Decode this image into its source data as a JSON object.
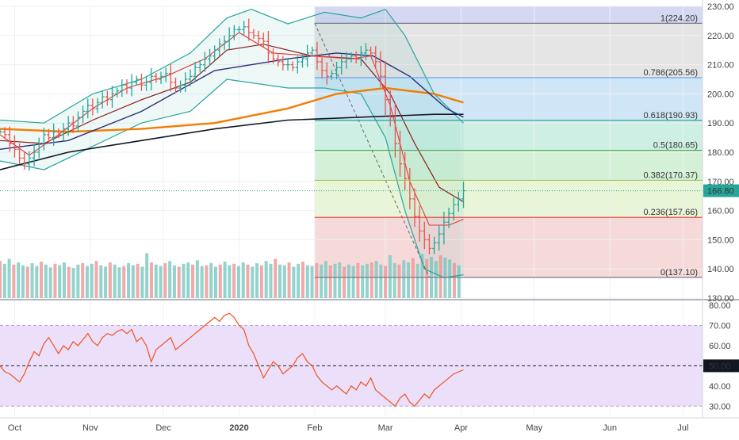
{
  "chart_data": {
    "type": "candlestick-technical",
    "symbol_price": {
      "value": "166.80",
      "color": "#26a69a"
    },
    "price_axis": {
      "min": 130,
      "max": 230,
      "ticks": [
        "130.00",
        "140.00",
        "150.00",
        "160.00",
        "170.00",
        "180.00",
        "190.00",
        "200.00",
        "210.00",
        "220.00",
        "230.00"
      ]
    },
    "rsi_axis": {
      "min": 25,
      "max": 82,
      "ticks": [
        "30.00",
        "40.00",
        "50.00",
        "60.00",
        "70.00",
        "80.00"
      ],
      "midline_label": "50.00",
      "band": [
        30,
        70
      ]
    },
    "time_axis": {
      "labels": [
        "Oct",
        "Nov",
        "Dec",
        "2020",
        "Feb",
        "Mar",
        "Apr",
        "May",
        "Jun",
        "Jul"
      ],
      "day_index": [
        18,
        49,
        79,
        110,
        141,
        170,
        201,
        231,
        262,
        292
      ],
      "span": [
        12,
        300
      ]
    },
    "fib_levels": [
      {
        "label": "1(224.20)",
        "value": 224.2,
        "color": "#787b86",
        "band": "#e0e0e0"
      },
      {
        "label": "0.786(205.56)",
        "value": 205.56,
        "color": "#5b9cf6",
        "band": "#c8e2f5"
      },
      {
        "label": "0.618(190.93)",
        "value": 190.93,
        "color": "#26a69a",
        "band": "#c6ecde"
      },
      {
        "label": "0.5(180.65)",
        "value": 180.65,
        "color": "#4caf50",
        "band": "#cdeed0"
      },
      {
        "label": "0.382(170.37)",
        "value": 170.37,
        "color": "#9bc84a",
        "band": "#e4f3cf"
      },
      {
        "label": "0.236(157.66)",
        "value": 157.66,
        "color": "#e53935",
        "band": "#f4d3d3"
      },
      {
        "label": "0(137.10)",
        "value": 137.1,
        "color": "#787b86",
        "band": "#f4d3d3"
      }
    ],
    "fib_top_band_color": "#d1d4f2",
    "fib_start_day": 141,
    "fib_end_day": 300,
    "current_line_value": 166.8,
    "closes": [
      [
        12,
        187
      ],
      [
        14,
        186
      ],
      [
        16,
        183
      ],
      [
        18,
        181
      ],
      [
        20,
        178
      ],
      [
        22,
        176
      ],
      [
        24,
        178
      ],
      [
        26,
        180
      ],
      [
        28,
        183
      ],
      [
        30,
        186
      ],
      [
        32,
        185
      ],
      [
        34,
        187
      ],
      [
        36,
        186
      ],
      [
        38,
        188
      ],
      [
        40,
        190
      ],
      [
        42,
        189
      ],
      [
        44,
        192
      ],
      [
        46,
        194
      ],
      [
        48,
        196
      ],
      [
        50,
        195
      ],
      [
        52,
        197
      ],
      [
        54,
        199
      ],
      [
        56,
        198
      ],
      [
        58,
        200
      ],
      [
        60,
        201
      ],
      [
        62,
        203
      ],
      [
        64,
        202
      ],
      [
        66,
        204
      ],
      [
        68,
        205
      ],
      [
        70,
        203
      ],
      [
        72,
        204
      ],
      [
        74,
        206
      ],
      [
        76,
        205
      ],
      [
        78,
        206
      ],
      [
        80,
        207
      ],
      [
        82,
        204
      ],
      [
        84,
        202
      ],
      [
        86,
        203
      ],
      [
        88,
        205
      ],
      [
        90,
        206
      ],
      [
        92,
        209
      ],
      [
        94,
        210
      ],
      [
        96,
        212
      ],
      [
        98,
        213
      ],
      [
        100,
        215
      ],
      [
        102,
        217
      ],
      [
        104,
        218
      ],
      [
        106,
        220
      ],
      [
        108,
        222
      ],
      [
        110,
        222
      ],
      [
        112,
        223
      ],
      [
        114,
        221
      ],
      [
        116,
        220
      ],
      [
        118,
        219
      ],
      [
        120,
        218
      ],
      [
        122,
        214
      ],
      [
        124,
        212
      ],
      [
        126,
        211
      ],
      [
        128,
        210
      ],
      [
        130,
        210
      ],
      [
        132,
        209
      ],
      [
        134,
        211
      ],
      [
        136,
        212
      ],
      [
        138,
        214
      ],
      [
        140,
        215
      ],
      [
        142,
        211
      ],
      [
        144,
        208
      ],
      [
        146,
        206
      ],
      [
        148,
        207
      ],
      [
        150,
        209
      ],
      [
        152,
        211
      ],
      [
        154,
        212
      ],
      [
        156,
        213
      ],
      [
        158,
        212
      ],
      [
        160,
        214
      ],
      [
        162,
        215
      ],
      [
        164,
        214
      ],
      [
        166,
        211
      ],
      [
        168,
        206
      ],
      [
        170,
        198
      ],
      [
        172,
        192
      ],
      [
        174,
        183
      ],
      [
        176,
        176
      ],
      [
        178,
        171
      ],
      [
        180,
        164
      ],
      [
        182,
        158
      ],
      [
        184,
        153
      ],
      [
        186,
        150
      ],
      [
        188,
        147
      ],
      [
        190,
        149
      ],
      [
        192,
        152
      ],
      [
        194,
        156
      ],
      [
        196,
        159
      ],
      [
        198,
        162
      ],
      [
        200,
        164
      ],
      [
        202,
        166.8
      ]
    ],
    "sma200": [
      [
        12,
        174
      ],
      [
        40,
        180
      ],
      [
        70,
        184
      ],
      [
        100,
        188
      ],
      [
        130,
        191
      ],
      [
        160,
        192
      ],
      [
        190,
        193
      ],
      [
        202,
        193
      ]
    ],
    "sma100": [
      [
        12,
        188
      ],
      [
        40,
        187
      ],
      [
        70,
        188
      ],
      [
        100,
        190
      ],
      [
        130,
        195
      ],
      [
        150,
        200
      ],
      [
        170,
        202
      ],
      [
        190,
        200
      ],
      [
        202,
        197
      ]
    ],
    "sma50": [
      [
        12,
        181
      ],
      [
        40,
        184
      ],
      [
        70,
        194
      ],
      [
        100,
        208
      ],
      [
        130,
        212
      ],
      [
        150,
        214
      ],
      [
        165,
        213
      ],
      [
        180,
        206
      ],
      [
        195,
        195
      ],
      [
        202,
        192
      ]
    ],
    "bb_upper": [
      [
        12,
        191
      ],
      [
        30,
        190
      ],
      [
        50,
        200
      ],
      [
        70,
        205
      ],
      [
        90,
        214
      ],
      [
        105,
        226
      ],
      [
        115,
        229
      ],
      [
        130,
        224
      ],
      [
        145,
        228
      ],
      [
        160,
        226
      ],
      [
        170,
        229
      ],
      [
        178,
        220
      ],
      [
        190,
        200
      ],
      [
        202,
        190
      ]
    ],
    "bb_lower": [
      [
        12,
        177
      ],
      [
        30,
        174
      ],
      [
        50,
        182
      ],
      [
        70,
        190
      ],
      [
        90,
        194
      ],
      [
        105,
        205
      ],
      [
        130,
        202
      ],
      [
        145,
        202
      ],
      [
        160,
        200
      ],
      [
        170,
        185
      ],
      [
        178,
        160
      ],
      [
        186,
        140
      ],
      [
        194,
        137
      ],
      [
        202,
        138
      ]
    ],
    "bb_mid": [
      [
        12,
        184
      ],
      [
        30,
        183
      ],
      [
        50,
        191
      ],
      [
        70,
        198
      ],
      [
        90,
        204
      ],
      [
        105,
        215
      ],
      [
        120,
        217
      ],
      [
        140,
        213
      ],
      [
        160,
        212
      ],
      [
        172,
        200
      ],
      [
        182,
        183
      ],
      [
        192,
        168
      ],
      [
        202,
        163
      ]
    ],
    "ema_fast": [
      [
        12,
        186
      ],
      [
        24,
        179
      ],
      [
        36,
        186
      ],
      [
        50,
        195
      ],
      [
        64,
        202
      ],
      [
        80,
        206
      ],
      [
        96,
        212
      ],
      [
        110,
        221
      ],
      [
        124,
        214
      ],
      [
        140,
        213
      ],
      [
        156,
        212
      ],
      [
        164,
        213
      ],
      [
        172,
        196
      ],
      [
        180,
        170
      ],
      [
        188,
        155
      ],
      [
        196,
        155
      ],
      [
        202,
        157
      ]
    ],
    "volumes": [
      52,
      48,
      55,
      47,
      50,
      46,
      44,
      49,
      45,
      51,
      47,
      43,
      48,
      46,
      50,
      44,
      42,
      47,
      49,
      45,
      48,
      52,
      46,
      44,
      50,
      47,
      43,
      45,
      49,
      46,
      48,
      44,
      63,
      50,
      47,
      45,
      49,
      52,
      46,
      44,
      48,
      50,
      47,
      53,
      45,
      46,
      49,
      44,
      47,
      51,
      46,
      48,
      45,
      50,
      47,
      44,
      49,
      46,
      52,
      48,
      55,
      47,
      46,
      50,
      44,
      48,
      51,
      46,
      45,
      49,
      47,
      52,
      46,
      48,
      50,
      44,
      47,
      45,
      49,
      46,
      48,
      50,
      52,
      47,
      45,
      60,
      49,
      47,
      53,
      50,
      56,
      48,
      62,
      55,
      58,
      52,
      60,
      57,
      54,
      49,
      46
    ],
    "rsi": [
      [
        12,
        50
      ],
      [
        14,
        47
      ],
      [
        16,
        46
      ],
      [
        18,
        44
      ],
      [
        20,
        42
      ],
      [
        22,
        46
      ],
      [
        24,
        52
      ],
      [
        26,
        57
      ],
      [
        28,
        55
      ],
      [
        30,
        61
      ],
      [
        32,
        64
      ],
      [
        34,
        60
      ],
      [
        36,
        56
      ],
      [
        38,
        60
      ],
      [
        40,
        58
      ],
      [
        42,
        62
      ],
      [
        44,
        60
      ],
      [
        46,
        63
      ],
      [
        48,
        66
      ],
      [
        50,
        62
      ],
      [
        52,
        60
      ],
      [
        54,
        64
      ],
      [
        56,
        66
      ],
      [
        58,
        65
      ],
      [
        60,
        67
      ],
      [
        62,
        68
      ],
      [
        64,
        66
      ],
      [
        66,
        68
      ],
      [
        68,
        62
      ],
      [
        70,
        64
      ],
      [
        72,
        60
      ],
      [
        74,
        52
      ],
      [
        76,
        58
      ],
      [
        78,
        60
      ],
      [
        80,
        62
      ],
      [
        82,
        64
      ],
      [
        84,
        58
      ],
      [
        86,
        60
      ],
      [
        88,
        62
      ],
      [
        90,
        64
      ],
      [
        92,
        66
      ],
      [
        94,
        68
      ],
      [
        96,
        70
      ],
      [
        98,
        72
      ],
      [
        100,
        74
      ],
      [
        102,
        72
      ],
      [
        104,
        75
      ],
      [
        106,
        76
      ],
      [
        108,
        74
      ],
      [
        110,
        70
      ],
      [
        112,
        68
      ],
      [
        114,
        60
      ],
      [
        116,
        56
      ],
      [
        118,
        50
      ],
      [
        120,
        44
      ],
      [
        122,
        48
      ],
      [
        124,
        52
      ],
      [
        126,
        50
      ],
      [
        128,
        46
      ],
      [
        130,
        48
      ],
      [
        132,
        50
      ],
      [
        134,
        54
      ],
      [
        136,
        56
      ],
      [
        138,
        52
      ],
      [
        140,
        50
      ],
      [
        142,
        45
      ],
      [
        144,
        42
      ],
      [
        146,
        40
      ],
      [
        148,
        38
      ],
      [
        150,
        40
      ],
      [
        152,
        38
      ],
      [
        154,
        36
      ],
      [
        156,
        40
      ],
      [
        158,
        38
      ],
      [
        160,
        42
      ],
      [
        162,
        40
      ],
      [
        164,
        44
      ],
      [
        166,
        38
      ],
      [
        168,
        36
      ],
      [
        170,
        34
      ],
      [
        172,
        32
      ],
      [
        174,
        30
      ],
      [
        176,
        34
      ],
      [
        178,
        36
      ],
      [
        180,
        32
      ],
      [
        182,
        30
      ],
      [
        184,
        33
      ],
      [
        186,
        36
      ],
      [
        188,
        34
      ],
      [
        190,
        38
      ],
      [
        192,
        40
      ],
      [
        194,
        42
      ],
      [
        196,
        44
      ],
      [
        198,
        46
      ],
      [
        200,
        47
      ],
      [
        202,
        48
      ]
    ]
  }
}
